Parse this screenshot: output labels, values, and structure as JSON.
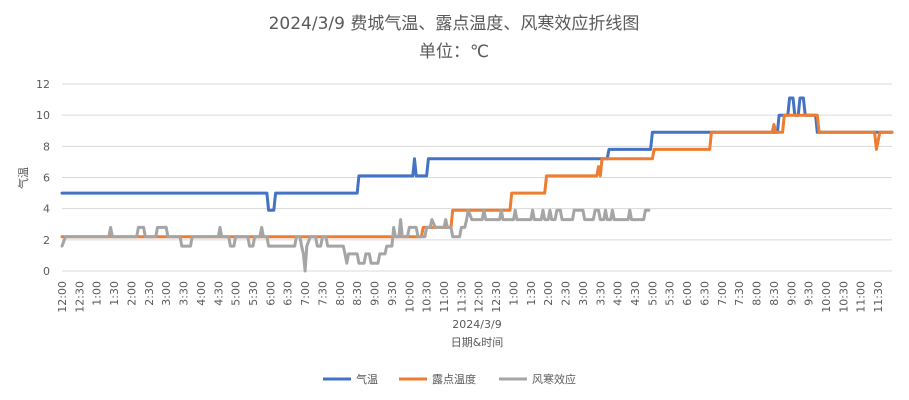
{
  "chart_data": {
    "type": "line",
    "title": "2024/3/9 费城气温、露点温度、风寒效应折线图",
    "subtitle": "单位：℃",
    "xlabel": "2024/3/9",
    "xlabel2": "日期&时间",
    "ylabel": "气温",
    "ylim": [
      0,
      12
    ],
    "yticks": [
      "0",
      "2",
      "4",
      "6",
      "8",
      "10",
      "12"
    ],
    "grid": true,
    "legend_position": "bottom",
    "x_tick_labels": [
      "12:00",
      "12:30",
      "1:00",
      "1:30",
      "2:00",
      "2:30",
      "3:00",
      "3:30",
      "4:00",
      "4:30",
      "5:00",
      "5:30",
      "6:00",
      "6:30",
      "7:00",
      "7:30",
      "8:00",
      "8:30",
      "9:00",
      "9:30",
      "10:00",
      "10:30",
      "11:00",
      "11:30",
      "12:00",
      "12:30",
      "1:00",
      "1:30",
      "2:00",
      "2:30",
      "3:00",
      "3:30",
      "4:00",
      "4:30",
      "5:00",
      "5:30",
      "6:00",
      "6:30",
      "7:00",
      "7:30",
      "8:00",
      "8:30",
      "9:00",
      "9:30",
      "10:00",
      "10:30",
      "11:00",
      "11:30"
    ],
    "x_range_hours": [
      0,
      23.9
    ],
    "series": [
      {
        "name": "气温",
        "color": "#4472C4",
        "points": [
          [
            0,
            5
          ],
          [
            5.9,
            5
          ],
          [
            5.95,
            3.9
          ],
          [
            6.1,
            3.9
          ],
          [
            6.15,
            5
          ],
          [
            8.5,
            5
          ],
          [
            8.55,
            6.1
          ],
          [
            10.1,
            6.1
          ],
          [
            10.15,
            7.2
          ],
          [
            10.2,
            6.1
          ],
          [
            10.5,
            6.1
          ],
          [
            10.55,
            7.2
          ],
          [
            15.7,
            7.2
          ],
          [
            15.75,
            7.8
          ],
          [
            16.95,
            7.8
          ],
          [
            17.0,
            8.9
          ],
          [
            20.6,
            8.9
          ],
          [
            20.65,
            10
          ],
          [
            20.9,
            10
          ],
          [
            20.95,
            11.1
          ],
          [
            21.05,
            11.1
          ],
          [
            21.1,
            10
          ],
          [
            21.2,
            10
          ],
          [
            21.25,
            11.1
          ],
          [
            21.35,
            11.1
          ],
          [
            21.4,
            10
          ],
          [
            21.7,
            10
          ],
          [
            21.75,
            8.9
          ],
          [
            23.9,
            8.9
          ]
        ]
      },
      {
        "name": "露点温度",
        "color": "#ED7D31",
        "points": [
          [
            0,
            2.2
          ],
          [
            10.35,
            2.2
          ],
          [
            10.4,
            2.8
          ],
          [
            11.2,
            2.8
          ],
          [
            11.25,
            3.9
          ],
          [
            12.9,
            3.9
          ],
          [
            12.95,
            5
          ],
          [
            13.9,
            5
          ],
          [
            13.95,
            6.1
          ],
          [
            15.4,
            6.1
          ],
          [
            15.45,
            6.7
          ],
          [
            15.5,
            6.1
          ],
          [
            15.55,
            7.2
          ],
          [
            17.0,
            7.2
          ],
          [
            17.05,
            7.8
          ],
          [
            18.65,
            7.8
          ],
          [
            18.7,
            8.9
          ],
          [
            20.45,
            8.9
          ],
          [
            20.5,
            9.4
          ],
          [
            20.55,
            8.9
          ],
          [
            20.75,
            8.9
          ],
          [
            20.8,
            10
          ],
          [
            21.75,
            10
          ],
          [
            21.8,
            8.9
          ],
          [
            23.4,
            8.9
          ],
          [
            23.45,
            7.8
          ],
          [
            23.55,
            8.9
          ],
          [
            23.9,
            8.9
          ]
        ]
      },
      {
        "name": "风寒效应",
        "color": "#A5A5A5",
        "points": [
          [
            0,
            1.6
          ],
          [
            0.1,
            2.2
          ],
          [
            1.35,
            2.2
          ],
          [
            1.4,
            2.8
          ],
          [
            1.45,
            2.2
          ],
          [
            2.15,
            2.2
          ],
          [
            2.2,
            2.8
          ],
          [
            2.35,
            2.8
          ],
          [
            2.4,
            2.2
          ],
          [
            2.7,
            2.2
          ],
          [
            2.75,
            2.8
          ],
          [
            3.0,
            2.8
          ],
          [
            3.05,
            2.2
          ],
          [
            3.4,
            2.2
          ],
          [
            3.45,
            1.6
          ],
          [
            3.7,
            1.6
          ],
          [
            3.75,
            2.2
          ],
          [
            4.5,
            2.2
          ],
          [
            4.55,
            2.8
          ],
          [
            4.6,
            2.2
          ],
          [
            4.8,
            2.2
          ],
          [
            4.85,
            1.6
          ],
          [
            4.95,
            1.6
          ],
          [
            5.0,
            2.2
          ],
          [
            5.35,
            2.2
          ],
          [
            5.4,
            1.6
          ],
          [
            5.5,
            1.6
          ],
          [
            5.55,
            2.2
          ],
          [
            5.7,
            2.2
          ],
          [
            5.75,
            2.8
          ],
          [
            5.8,
            2.2
          ],
          [
            5.9,
            2.2
          ],
          [
            5.95,
            1.6
          ],
          [
            6.7,
            1.6
          ],
          [
            6.75,
            2.2
          ],
          [
            6.85,
            2.2
          ],
          [
            6.9,
            1.6
          ],
          [
            6.95,
            1.1
          ],
          [
            7.0,
            0
          ],
          [
            7.05,
            1.6
          ],
          [
            7.15,
            2.2
          ],
          [
            7.3,
            2.2
          ],
          [
            7.35,
            1.6
          ],
          [
            7.45,
            1.6
          ],
          [
            7.5,
            2.2
          ],
          [
            7.6,
            2.2
          ],
          [
            7.65,
            1.6
          ],
          [
            8.1,
            1.6
          ],
          [
            8.15,
            1.1
          ],
          [
            8.2,
            0.5
          ],
          [
            8.25,
            1.1
          ],
          [
            8.5,
            1.1
          ],
          [
            8.55,
            0.5
          ],
          [
            8.7,
            0.5
          ],
          [
            8.75,
            1.1
          ],
          [
            8.85,
            1.1
          ],
          [
            8.9,
            0.5
          ],
          [
            9.1,
            0.5
          ],
          [
            9.15,
            1.1
          ],
          [
            9.3,
            1.1
          ],
          [
            9.35,
            1.6
          ],
          [
            9.5,
            1.6
          ],
          [
            9.55,
            2.8
          ],
          [
            9.6,
            2.2
          ],
          [
            9.7,
            2.2
          ],
          [
            9.75,
            3.3
          ],
          [
            9.8,
            2.2
          ],
          [
            9.95,
            2.2
          ],
          [
            10.0,
            2.8
          ],
          [
            10.2,
            2.8
          ],
          [
            10.25,
            2.2
          ],
          [
            10.45,
            2.2
          ],
          [
            10.5,
            2.8
          ],
          [
            10.6,
            2.8
          ],
          [
            10.65,
            3.3
          ],
          [
            10.75,
            2.8
          ],
          [
            11.0,
            2.8
          ],
          [
            11.05,
            3.3
          ],
          [
            11.1,
            2.8
          ],
          [
            11.2,
            2.8
          ],
          [
            11.25,
            2.2
          ],
          [
            11.45,
            2.2
          ],
          [
            11.5,
            2.8
          ],
          [
            11.6,
            2.8
          ],
          [
            11.65,
            3.3
          ],
          [
            11.7,
            3.9
          ],
          [
            11.8,
            3.3
          ],
          [
            12.1,
            3.3
          ],
          [
            12.15,
            3.9
          ],
          [
            12.2,
            3.3
          ],
          [
            12.6,
            3.3
          ],
          [
            12.65,
            3.9
          ],
          [
            12.7,
            3.3
          ],
          [
            13.0,
            3.3
          ],
          [
            13.05,
            3.9
          ],
          [
            13.1,
            3.3
          ],
          [
            13.5,
            3.3
          ],
          [
            13.55,
            3.9
          ],
          [
            13.6,
            3.3
          ],
          [
            13.8,
            3.3
          ],
          [
            13.85,
            3.9
          ],
          [
            13.9,
            3.3
          ],
          [
            14.0,
            3.3
          ],
          [
            14.05,
            3.9
          ],
          [
            14.1,
            3.3
          ],
          [
            14.2,
            3.3
          ],
          [
            14.25,
            3.9
          ],
          [
            14.35,
            3.9
          ],
          [
            14.4,
            3.3
          ],
          [
            14.7,
            3.3
          ],
          [
            14.75,
            3.9
          ],
          [
            15.0,
            3.9
          ],
          [
            15.05,
            3.3
          ],
          [
            15.3,
            3.3
          ],
          [
            15.35,
            3.9
          ],
          [
            15.45,
            3.9
          ],
          [
            15.5,
            3.3
          ],
          [
            15.6,
            3.3
          ],
          [
            15.65,
            3.9
          ],
          [
            15.7,
            3.3
          ],
          [
            15.8,
            3.3
          ],
          [
            15.85,
            3.9
          ],
          [
            15.9,
            3.3
          ],
          [
            16.3,
            3.3
          ],
          [
            16.35,
            3.9
          ],
          [
            16.4,
            3.3
          ],
          [
            16.75,
            3.3
          ],
          [
            16.8,
            3.9
          ],
          [
            16.9,
            3.9
          ]
        ]
      }
    ]
  }
}
